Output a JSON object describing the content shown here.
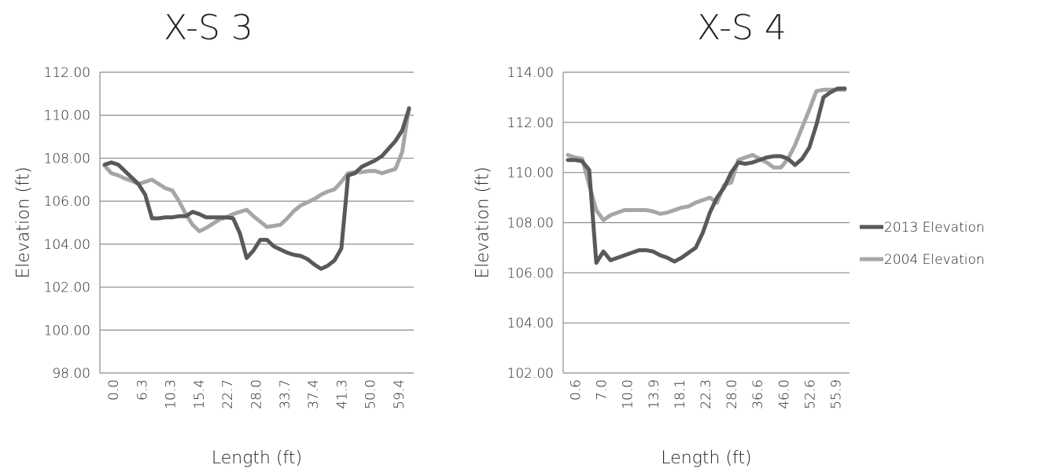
{
  "colors": {
    "series_2013": "#595959",
    "series_2004": "#a6a6a6",
    "grid": "#8c8c8c"
  },
  "legend": {
    "placement": "right",
    "items": [
      {
        "label": "2013 Elevation",
        "color": "#595959"
      },
      {
        "label": "2004 Elevation",
        "color": "#a6a6a6"
      }
    ]
  },
  "chart_data": [
    {
      "type": "line",
      "title": "X-S 3",
      "xlabel": "Length (ft)",
      "ylabel": "Elevation (ft)",
      "ylim": [
        98,
        112
      ],
      "y_ticks": [
        "98.00",
        "100.00",
        "102.00",
        "104.00",
        "106.00",
        "108.00",
        "110.00",
        "112.00"
      ],
      "x_tick_labels": [
        "0.0",
        "6.3",
        "10.3",
        "15.4",
        "22.7",
        "28.0",
        "33.7",
        "37.4",
        "41.3",
        "50.0",
        "59.4"
      ],
      "grid": true,
      "series": [
        {
          "name": "2013 Elevation",
          "values": [
            107.7,
            107.8,
            107.7,
            107.4,
            107.1,
            106.8,
            106.3,
            105.2,
            105.2,
            105.25,
            105.25,
            105.3,
            105.3,
            105.5,
            105.4,
            105.25,
            105.25,
            105.25,
            105.25,
            105.2,
            104.5,
            103.35,
            103.7,
            104.2,
            104.2,
            103.9,
            103.75,
            103.6,
            103.5,
            103.45,
            103.3,
            103.05,
            102.85,
            103.0,
            103.25,
            103.8,
            107.2,
            107.3,
            107.6,
            107.75,
            107.9,
            108.1,
            108.45,
            108.8,
            109.3,
            110.3
          ]
        },
        {
          "name": "2004 Elevation",
          "values": [
            107.65,
            107.3,
            107.2,
            107.05,
            106.95,
            106.8,
            106.9,
            107.0,
            106.8,
            106.6,
            106.5,
            106.0,
            105.4,
            104.9,
            104.6,
            104.75,
            104.95,
            105.15,
            105.25,
            105.4,
            105.5,
            105.6,
            105.3,
            105.05,
            104.8,
            104.85,
            104.9,
            105.2,
            105.55,
            105.8,
            105.95,
            106.1,
            106.3,
            106.45,
            106.55,
            106.9,
            107.3,
            107.35,
            107.35,
            107.4,
            107.4,
            107.3,
            107.4,
            107.5,
            108.3,
            110.35
          ]
        }
      ]
    },
    {
      "type": "line",
      "title": "X-S 4",
      "xlabel": "Length (ft)",
      "ylabel": "Elevation (ft)",
      "ylim": [
        102,
        114
      ],
      "y_ticks": [
        "102.00",
        "104.00",
        "106.00",
        "108.00",
        "110.00",
        "112.00",
        "114.00"
      ],
      "x_tick_labels": [
        "0.6",
        "7.0",
        "10.0",
        "13.9",
        "18.1",
        "22.3",
        "28.0",
        "36.6",
        "46.0",
        "52.6",
        "55.9"
      ],
      "grid": true,
      "series": [
        {
          "name": "2013 Elevation",
          "values": [
            110.5,
            110.5,
            110.45,
            110.1,
            106.4,
            106.85,
            106.5,
            106.6,
            106.7,
            106.8,
            106.9,
            106.9,
            106.85,
            106.7,
            106.6,
            106.45,
            106.6,
            106.8,
            107.0,
            107.6,
            108.4,
            109.0,
            109.4,
            110.0,
            110.4,
            110.35,
            110.4,
            110.5,
            110.6,
            110.65,
            110.65,
            110.55,
            110.3,
            110.55,
            111.0,
            111.9,
            113.0,
            113.2,
            113.35,
            113.35
          ]
        },
        {
          "name": "2004 Elevation",
          "values": [
            110.7,
            110.6,
            110.55,
            109.5,
            108.5,
            108.1,
            108.3,
            108.4,
            108.5,
            108.5,
            108.5,
            108.5,
            108.45,
            108.35,
            108.4,
            108.5,
            108.6,
            108.65,
            108.8,
            108.9,
            109.0,
            108.8,
            109.5,
            109.6,
            110.5,
            110.6,
            110.7,
            110.55,
            110.4,
            110.2,
            110.2,
            110.55,
            111.1,
            111.8,
            112.5,
            113.25,
            113.3,
            113.3,
            113.3,
            113.3
          ]
        }
      ]
    }
  ]
}
